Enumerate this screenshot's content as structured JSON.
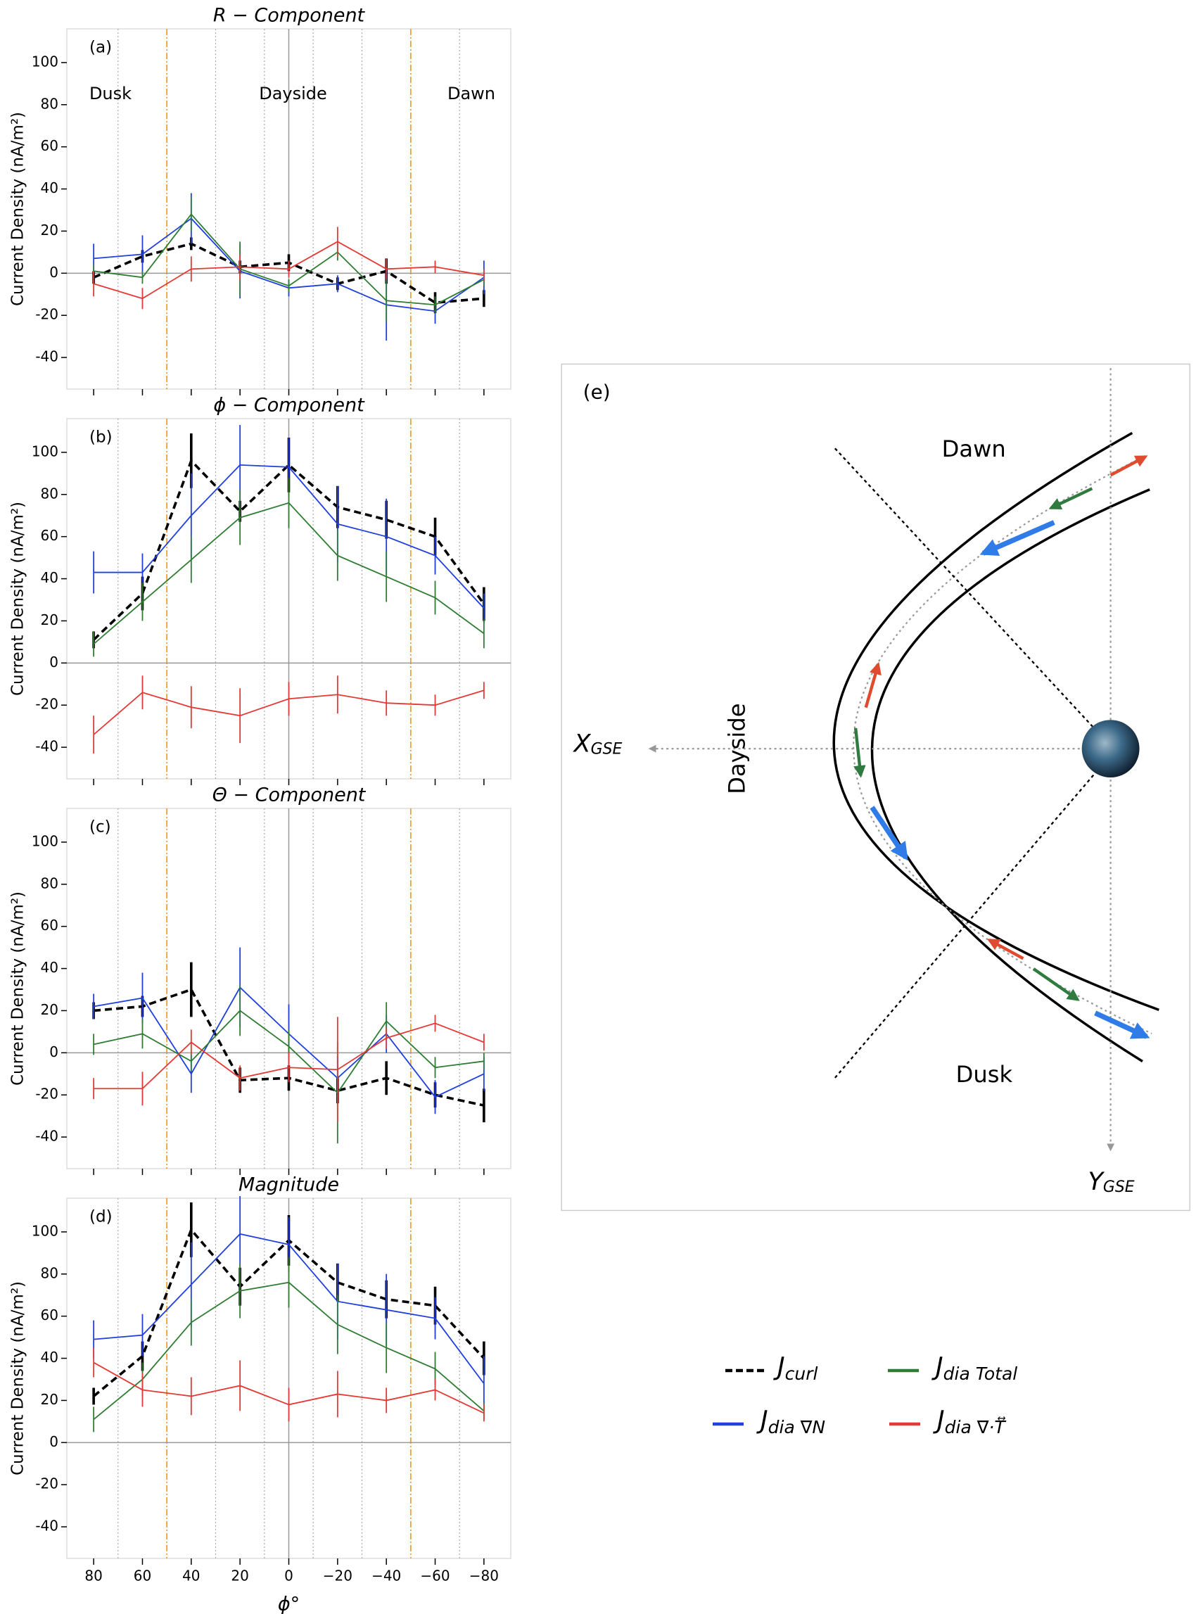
{
  "chart_data": [
    {
      "type": "line",
      "title": "R − Component",
      "panel_label": "(a)",
      "ylabel": "Current Density (nA/m²)",
      "annotations": [
        "Dusk",
        "Dayside",
        "Dawn"
      ],
      "x": [
        80,
        60,
        40,
        20,
        0,
        -20,
        -40,
        -60,
        -80
      ],
      "xlim": [
        91,
        -91
      ],
      "xticks": [
        80,
        60,
        40,
        20,
        0,
        -20,
        -40,
        -60,
        -80
      ],
      "ylim": [
        -55,
        116
      ],
      "yticks": [
        -40,
        -20,
        0,
        20,
        40,
        60,
        80,
        100
      ],
      "boundary_lines": [
        50,
        -50
      ],
      "dotted_lines": [
        70,
        30,
        10,
        -10,
        -30,
        -70
      ],
      "series": [
        {
          "color": "#000000",
          "dashed": true,
          "values": [
            -2,
            8,
            14,
            3,
            5,
            -5,
            1,
            -14,
            -12
          ],
          "errors": [
            3,
            3,
            3,
            3,
            4,
            3,
            6,
            5,
            4
          ]
        },
        {
          "color": "#1f3fe0",
          "dashed": false,
          "values": [
            7,
            9,
            26,
            1,
            -7,
            -5,
            -15,
            -18,
            -2
          ],
          "errors": [
            7,
            9,
            12,
            13,
            4,
            4,
            17,
            6,
            8
          ]
        },
        {
          "color": "#2e7d32",
          "dashed": false,
          "values": [
            1,
            -2,
            28,
            2,
            -6,
            10,
            -13,
            -15,
            -3
          ],
          "errors": [
            3,
            3,
            8,
            13,
            3,
            4,
            10,
            4,
            3
          ]
        },
        {
          "color": "#e53935",
          "dashed": false,
          "values": [
            -5,
            -12,
            2,
            3,
            2,
            15,
            2,
            3,
            -1
          ],
          "errors": [
            6,
            5,
            6,
            6,
            4,
            7,
            5,
            3,
            3
          ]
        }
      ]
    },
    {
      "type": "line",
      "title": "ϕ − Component",
      "panel_label": "(b)",
      "ylabel": "Current Density (nA/m²)",
      "x": [
        80,
        60,
        40,
        20,
        0,
        -20,
        -40,
        -60,
        -80
      ],
      "xlim": [
        91,
        -91
      ],
      "xticks": [
        80,
        60,
        40,
        20,
        0,
        -20,
        -40,
        -60,
        -80
      ],
      "ylim": [
        -55,
        116
      ],
      "yticks": [
        -40,
        -20,
        0,
        20,
        40,
        60,
        80,
        100
      ],
      "boundary_lines": [
        50,
        -50
      ],
      "dotted_lines": [
        70,
        30,
        10,
        -10,
        -30,
        -70
      ],
      "series": [
        {
          "color": "#000000",
          "dashed": true,
          "values": [
            11,
            33,
            96,
            72,
            94,
            74,
            68,
            60,
            28
          ],
          "errors": [
            4,
            8,
            13,
            5,
            13,
            10,
            9,
            9,
            8
          ]
        },
        {
          "color": "#1f3fe0",
          "dashed": false,
          "values": [
            43,
            43,
            70,
            94,
            93,
            66,
            60,
            51,
            26
          ],
          "errors": [
            10,
            9,
            20,
            19,
            14,
            18,
            18,
            9,
            7
          ]
        },
        {
          "color": "#2e7d32",
          "dashed": false,
          "values": [
            9,
            29,
            49,
            69,
            76,
            51,
            41,
            31,
            14
          ],
          "errors": [
            6,
            9,
            11,
            13,
            12,
            12,
            12,
            8,
            7
          ]
        },
        {
          "color": "#e53935",
          "dashed": false,
          "values": [
            -34,
            -14,
            -21,
            -25,
            -17,
            -15,
            -19,
            -20,
            -13
          ],
          "errors": [
            9,
            8,
            10,
            13,
            8,
            9,
            6,
            5,
            4
          ]
        }
      ]
    },
    {
      "type": "line",
      "title": "Θ − Component",
      "panel_label": "(c)",
      "ylabel": "Current Density (nA/m²)",
      "x": [
        80,
        60,
        40,
        20,
        0,
        -20,
        -40,
        -60,
        -80
      ],
      "xlim": [
        91,
        -91
      ],
      "xticks": [
        80,
        60,
        40,
        20,
        0,
        -20,
        -40,
        -60,
        -80
      ],
      "ylim": [
        -55,
        116
      ],
      "yticks": [
        -40,
        -20,
        0,
        20,
        40,
        60,
        80,
        100
      ],
      "boundary_lines": [
        50,
        -50
      ],
      "dotted_lines": [
        70,
        30,
        10,
        -10,
        -30,
        -70
      ],
      "series": [
        {
          "color": "#000000",
          "dashed": true,
          "values": [
            20,
            22,
            30,
            -13,
            -12,
            -18,
            -12,
            -20,
            -25
          ],
          "errors": [
            4,
            5,
            13,
            6,
            6,
            6,
            8,
            6,
            8
          ]
        },
        {
          "color": "#1f3fe0",
          "dashed": false,
          "values": [
            22,
            26,
            -10,
            31,
            9,
            -12,
            9,
            -21,
            -10
          ],
          "errors": [
            6,
            12,
            9,
            19,
            14,
            10,
            9,
            8,
            8
          ]
        },
        {
          "color": "#2e7d32",
          "dashed": false,
          "values": [
            4,
            9,
            -4,
            20,
            3,
            -19,
            15,
            -7,
            -4
          ],
          "errors": [
            5,
            7,
            5,
            12,
            8,
            24,
            9,
            5,
            4
          ]
        },
        {
          "color": "#e53935",
          "dashed": false,
          "values": [
            -17,
            -17,
            5,
            -12,
            -7,
            -8,
            7,
            14,
            5
          ],
          "errors": [
            5,
            8,
            6,
            6,
            7,
            25,
            5,
            4,
            4
          ]
        }
      ]
    },
    {
      "type": "line",
      "title": "Magnitude",
      "panel_label": "(d)",
      "ylabel": "Current Density (nA/m²)",
      "xlabel": "ϕ°",
      "x": [
        80,
        60,
        40,
        20,
        0,
        -20,
        -40,
        -60,
        -80
      ],
      "xlim": [
        91,
        -91
      ],
      "xticks": [
        80,
        60,
        40,
        20,
        0,
        {
          "value": -20,
          "label": "−20"
        },
        {
          "value": -40,
          "label": "−40"
        },
        {
          "value": -60,
          "label": "−60"
        },
        {
          "value": -80,
          "label": "−80"
        }
      ],
      "ylim": [
        -55,
        116
      ],
      "yticks": [
        -40,
        -20,
        0,
        20,
        40,
        60,
        80,
        100
      ],
      "boundary_lines": [
        50,
        -50
      ],
      "dotted_lines": [
        70,
        30,
        10,
        -10,
        -30,
        -70
      ],
      "series": [
        {
          "color": "#000000",
          "dashed": true,
          "values": [
            22,
            41,
            101,
            74,
            96,
            76,
            68,
            65,
            40
          ],
          "errors": [
            4,
            7,
            13,
            9,
            12,
            9,
            9,
            9,
            8
          ]
        },
        {
          "color": "#1f3fe0",
          "dashed": false,
          "values": [
            49,
            51,
            75,
            99,
            94,
            67,
            63,
            59,
            28
          ],
          "errors": [
            9,
            10,
            20,
            18,
            13,
            18,
            17,
            10,
            13
          ]
        },
        {
          "color": "#2e7d32",
          "dashed": false,
          "values": [
            11,
            30,
            57,
            72,
            76,
            56,
            45,
            35,
            15
          ],
          "errors": [
            6,
            8,
            11,
            13,
            12,
            14,
            12,
            8,
            4
          ]
        },
        {
          "color": "#e53935",
          "dashed": false,
          "values": [
            38,
            25,
            22,
            27,
            18,
            23,
            20,
            25,
            14
          ],
          "errors": [
            7,
            8,
            9,
            12,
            8,
            11,
            6,
            5,
            4
          ]
        }
      ]
    }
  ],
  "diagram": {
    "panel_label": "(e)",
    "dawn": "Dawn",
    "dusk": "Dusk",
    "dayside": "Dayside",
    "x_axis": {
      "symbol": "X",
      "subscript": "GSE"
    },
    "y_axis": {
      "symbol": "Y",
      "subscript": "GSE"
    }
  },
  "legend": [
    {
      "symbol": "J",
      "subscript": "curl",
      "color": "#000000",
      "dashed": true
    },
    {
      "symbol": "J",
      "subscript": "dia Total",
      "color": "#2e7d32",
      "dashed": false
    },
    {
      "symbol": "J",
      "subscript": "dia ∇N",
      "color": "#1f3fe0",
      "dashed": false
    },
    {
      "symbol": "J",
      "subscript": "dia ∇·T⃡",
      "color": "#e53935",
      "dashed": false
    }
  ]
}
